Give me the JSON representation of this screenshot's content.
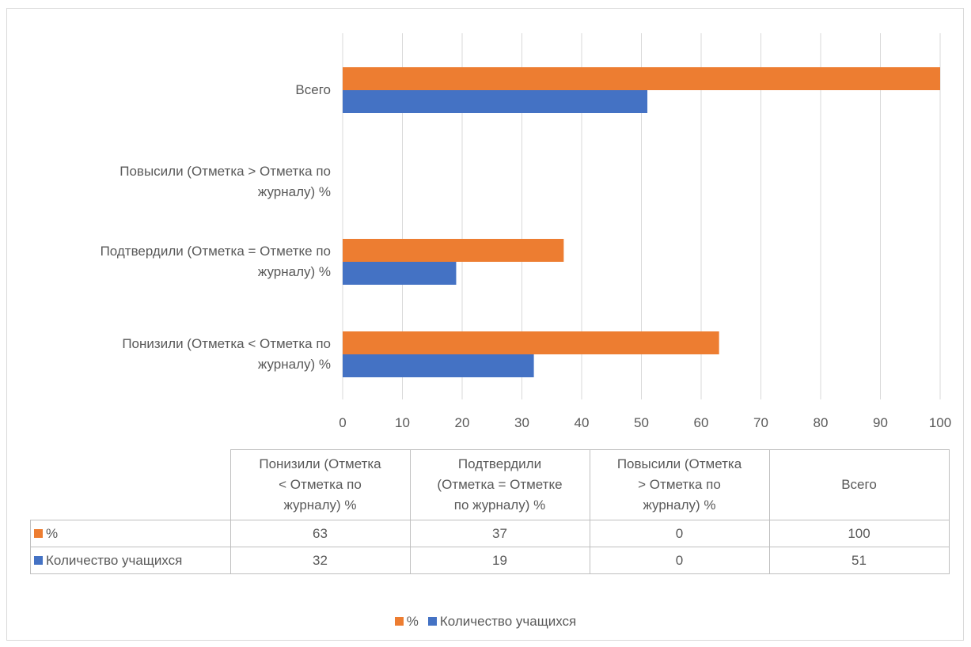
{
  "chart_data": {
    "type": "bar",
    "orientation": "horizontal",
    "categories": [
      "Понизили (Отметка < Отметка по журналу) %",
      "Подтвердили (Отметка = Отметке по журналу) %",
      "Повысили (Отметка > Отметка по журналу) %",
      "Всего"
    ],
    "series": [
      {
        "name": "%",
        "color": "#ED7D31",
        "values": [
          63,
          37,
          0,
          100
        ]
      },
      {
        "name": "Количество учащихся",
        "color": "#4472C4",
        "values": [
          32,
          19,
          0,
          51
        ]
      }
    ],
    "xlim": [
      0,
      100
    ],
    "xticks": [
      "0",
      "10",
      "20",
      "30",
      "40",
      "50",
      "60",
      "70",
      "80",
      "90",
      "100"
    ],
    "grid": "vertical",
    "legend_position": "bottom",
    "data_table": true,
    "category_label_lines": [
      [
        "Понизили (Отметка < Отметка по",
        "журналу) %"
      ],
      [
        "Подтвердили (Отметка = Отметке по",
        "журналу) %"
      ],
      [
        "Повысили (Отметка > Отметка по",
        "журналу) %"
      ],
      [
        "Всего"
      ]
    ],
    "table_header_lines": [
      [
        "Понизили (Отметка",
        "< Отметка по",
        "журналу) %"
      ],
      [
        "Подтвердили",
        "(Отметка = Отметке",
        "по журналу) %"
      ],
      [
        "Повысили (Отметка",
        "> Отметка по",
        "журналу) %"
      ],
      [
        "Всего"
      ]
    ]
  }
}
